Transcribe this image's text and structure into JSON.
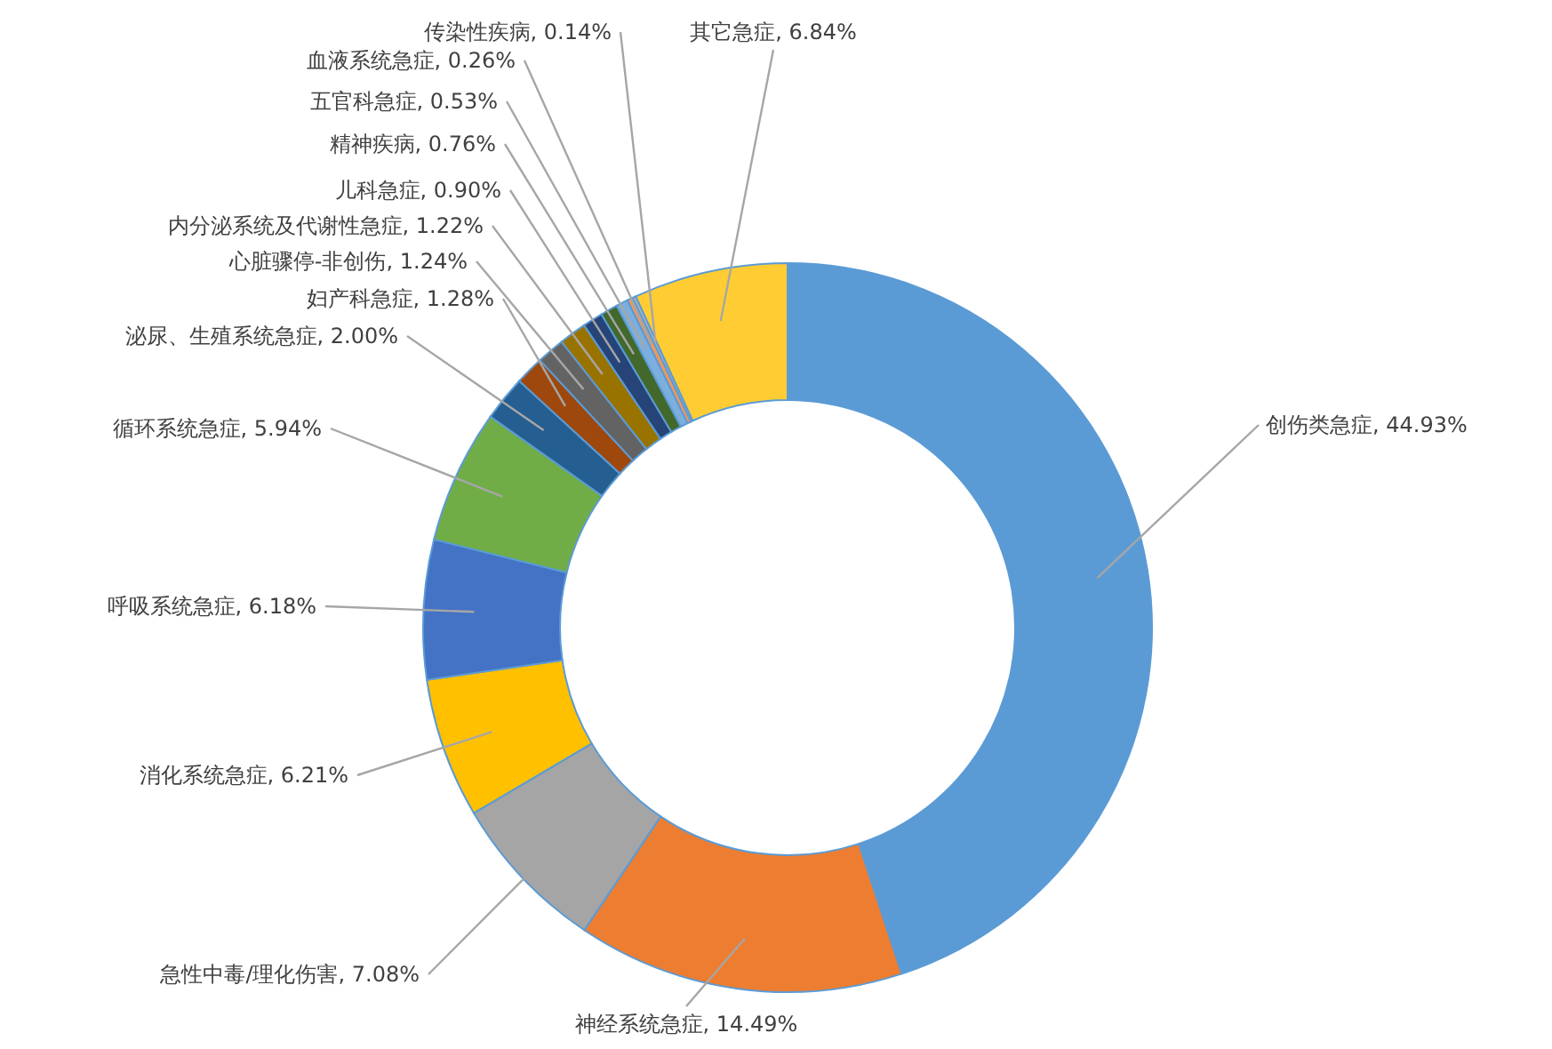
{
  "chart_data": {
    "type": "donut",
    "categories": [
      "创伤类急症",
      "神经系统急症",
      "急性中毒/理化伤害",
      "消化系统急症",
      "呼吸系统急症",
      "循环系统急症",
      "泌尿、生殖系统急症",
      "妇产科急症",
      "心脏骤停-非创伤",
      "内分泌系统及代谢性急症",
      "儿科急症",
      "精神疾病",
      "五官科急症",
      "血液系统急症",
      "传染性疾病",
      "其它急症"
    ],
    "values": [
      44.93,
      14.49,
      7.08,
      6.21,
      6.18,
      5.94,
      2.0,
      1.28,
      1.24,
      1.22,
      0.9,
      0.76,
      0.53,
      0.26,
      0.14,
      6.84
    ],
    "colors": [
      "#5b9bd5",
      "#ed7d31",
      "#a5a5a5",
      "#ffc000",
      "#4472c4",
      "#70ad47",
      "#255e91",
      "#9e480e",
      "#636363",
      "#997300",
      "#264478",
      "#43682b",
      "#7cafdd",
      "#f1975a",
      "#b7b7b7",
      "#ffcd33"
    ],
    "value_labels": [
      ", 44.93%",
      ", 14.49%",
      ", 7.08%",
      ", 6.21%",
      ", 6.18%",
      ", 5.94%",
      ", 2.00%",
      ", 1.28%",
      ", 1.24%",
      ", 1.22%",
      ", 0.90%",
      ", 0.76%",
      ", 0.53%",
      ", 0.26%",
      ", 0.14%",
      ", 6.84%"
    ]
  }
}
